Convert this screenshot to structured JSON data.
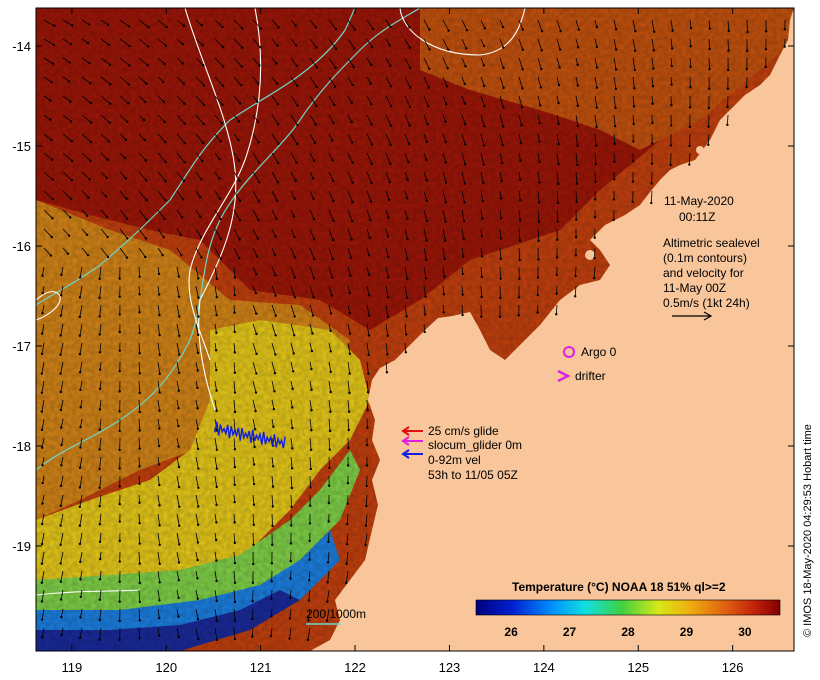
{
  "map": {
    "lon_ticks": [
      "119",
      "120",
      "121",
      "122",
      "123",
      "124",
      "125",
      "126"
    ],
    "lat_ticks": [
      "-14",
      "-15",
      "-16",
      "-17",
      "-18",
      "-19"
    ],
    "lon_range": [
      118.62,
      126.65
    ],
    "lat_range": [
      -20.05,
      -13.62
    ]
  },
  "annotations": {
    "date": "11-May-2020",
    "time": "00:11Z",
    "altimetry_lines": [
      "Altimetric sealevel",
      "(0.1m contours)",
      "and velocity for",
      "11-May 00Z",
      "0.5m/s (1kt 24h)"
    ],
    "argo_label": "Argo 0",
    "drifter_label": "drifter",
    "glider_lines": [
      "25 cm/s glide",
      "slocum_glider 0m",
      "0-92m vel",
      "53h to 11/05 05Z"
    ],
    "bathy_label": "200  1000m"
  },
  "colorbar": {
    "title": "Temperature (°C) NOAA 18 51% ql>=2",
    "ticks": [
      "26",
      "27",
      "28",
      "29",
      "30"
    ],
    "range": [
      25.4,
      30.6
    ]
  },
  "credit": "© IMOS 18-May-2020 04:29:53 Hobart time",
  "colors": {
    "land": "#f8c69a",
    "sst_warm": "#a21a08",
    "sst_orange": "#d2741d",
    "sst_yellow": "#e6d418",
    "sst_green": "#52c24a",
    "sst_blue": "#1a3ca8",
    "contour": "#6fd6c8",
    "sealevel": "#ffffff",
    "argo": "#e020e0",
    "glider_track": "#1020e0"
  }
}
